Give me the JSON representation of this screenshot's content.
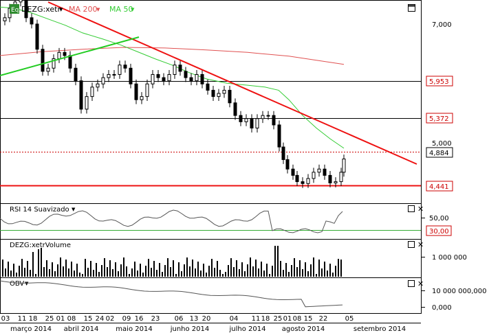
{
  "chart_data": {
    "type": "candlestick",
    "months": [
      {
        "label": "março 2014",
        "center": 45
      },
      {
        "label": "abril 2014",
        "center": 118
      },
      {
        "label": "maio 2014",
        "center": 195
      },
      {
        "label": "junho 2014",
        "center": 276
      },
      {
        "label": "julho 2014",
        "center": 360
      },
      {
        "label": "agosto 2014",
        "center": 441
      },
      {
        "label": "setembro 2014",
        "center": 552
      }
    ],
    "day_labels": [
      "03",
      "11",
      "18",
      "25",
      "01",
      "08",
      "15",
      "24",
      "02",
      "09",
      "16",
      "23",
      "06",
      "13",
      "20",
      "04",
      "11",
      "18",
      "25",
      "01",
      "08",
      "15",
      "22",
      "05"
    ],
    "main_panel": {
      "symbol_badge": "Eq",
      "symbol": "DEZG:xetr",
      "ma200_label": "MA 200",
      "ma50_label": "MA 50",
      "y_ticks": [
        "7,000",
        "5,000"
      ],
      "level_labels": [
        {
          "text": "5,953",
          "color": "#cc0000",
          "boxed": true
        },
        {
          "text": "5,372",
          "color": "#cc0000",
          "boxed": true
        },
        {
          "text": "4,884",
          "color": "#000000",
          "boxed": true
        },
        {
          "text": "4,441",
          "color": "#cc0000",
          "boxed": true
        }
      ],
      "candles": [],
      "ma200": [
        [
          0,
          6.5
        ],
        [
          60,
          6.56
        ],
        [
          120,
          6.6
        ],
        [
          180,
          6.63
        ],
        [
          240,
          6.62
        ],
        [
          300,
          6.59
        ],
        [
          360,
          6.55
        ],
        [
          420,
          6.49
        ],
        [
          470,
          6.41
        ],
        [
          500,
          6.36
        ]
      ],
      "ma50": [
        [
          0,
          7.27
        ],
        [
          20,
          7.25
        ],
        [
          45,
          7.18
        ],
        [
          70,
          7.08
        ],
        [
          95,
          6.98
        ],
        [
          120,
          6.86
        ],
        [
          150,
          6.76
        ],
        [
          175,
          6.67
        ],
        [
          200,
          6.56
        ],
        [
          225,
          6.45
        ],
        [
          250,
          6.35
        ],
        [
          275,
          6.23
        ],
        [
          300,
          6.13
        ],
        [
          330,
          6.06
        ],
        [
          360,
          6.03
        ],
        [
          385,
          6.0
        ],
        [
          405,
          5.95
        ],
        [
          420,
          5.8
        ],
        [
          440,
          5.55
        ],
        [
          460,
          5.35
        ],
        [
          480,
          5.18
        ],
        [
          500,
          5.03
        ]
      ],
      "colors": {
        "up": "#ffffff",
        "down": "#000000",
        "ma200": "#e05050",
        "ma50": "#33cc33",
        "trend_down": "#ee1111",
        "trend_up": "#22cc22",
        "level": "#000000",
        "support": "#ee1111",
        "current": "#cc0000"
      }
    },
    "rsi_panel": {
      "title": "RSI 14 Suavizado",
      "y_ticks": [
        "50,00"
      ],
      "level_label": "30,00"
    },
    "volume_panel": {
      "title": "DEZG:xetrVolume",
      "y_ticks": [
        "1 000 000"
      ]
    },
    "obv_panel": {
      "title": "OBV",
      "y_ticks": [
        "10 000 000,000",
        "0,000"
      ]
    }
  }
}
